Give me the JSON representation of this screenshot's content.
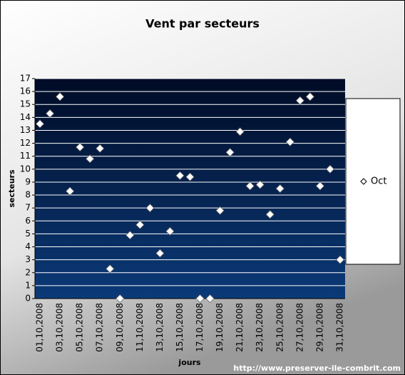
{
  "chart_data": {
    "type": "scatter",
    "title": "Vent par secteurs",
    "y_label": "secteurs",
    "x_label": "jours",
    "watermark": "http://www.preserver-ile-combrit.com",
    "categories": [
      "01,10,2008",
      null,
      "03,10,2008",
      null,
      "05,10,2008",
      null,
      "07,10,2008",
      null,
      "09,10,2008",
      null,
      "11,10,2008",
      null,
      "13,10,2008",
      null,
      "15,10,2008",
      null,
      "17,10,2008",
      null,
      "19,10,2008",
      null,
      "21,10,2008",
      null,
      "23,10,2008",
      null,
      "25,10,2008",
      null,
      "27,10,2008",
      null,
      "29,10,2008",
      null,
      "31,10,2008"
    ],
    "series": [
      {
        "name": "Oct",
        "color": "#ffffff",
        "values": [
          13.5,
          14.3,
          15.6,
          8.3,
          11.7,
          10.8,
          11.6,
          2.3,
          0,
          4.9,
          5.7,
          7.0,
          3.5,
          5.2,
          9.5,
          9.4,
          0,
          0,
          6.8,
          11.3,
          12.9,
          8.7,
          8.8,
          6.5,
          8.5,
          12.1,
          15.3,
          15.6,
          8.7,
          10.0,
          3.0
        ]
      }
    ],
    "ylim": [
      0,
      17
    ],
    "yticks": [
      0,
      1,
      2,
      3,
      4,
      5,
      6,
      7,
      8,
      9,
      10,
      11,
      12,
      13,
      14,
      15,
      16,
      17
    ],
    "grid": true,
    "legend": "right"
  }
}
